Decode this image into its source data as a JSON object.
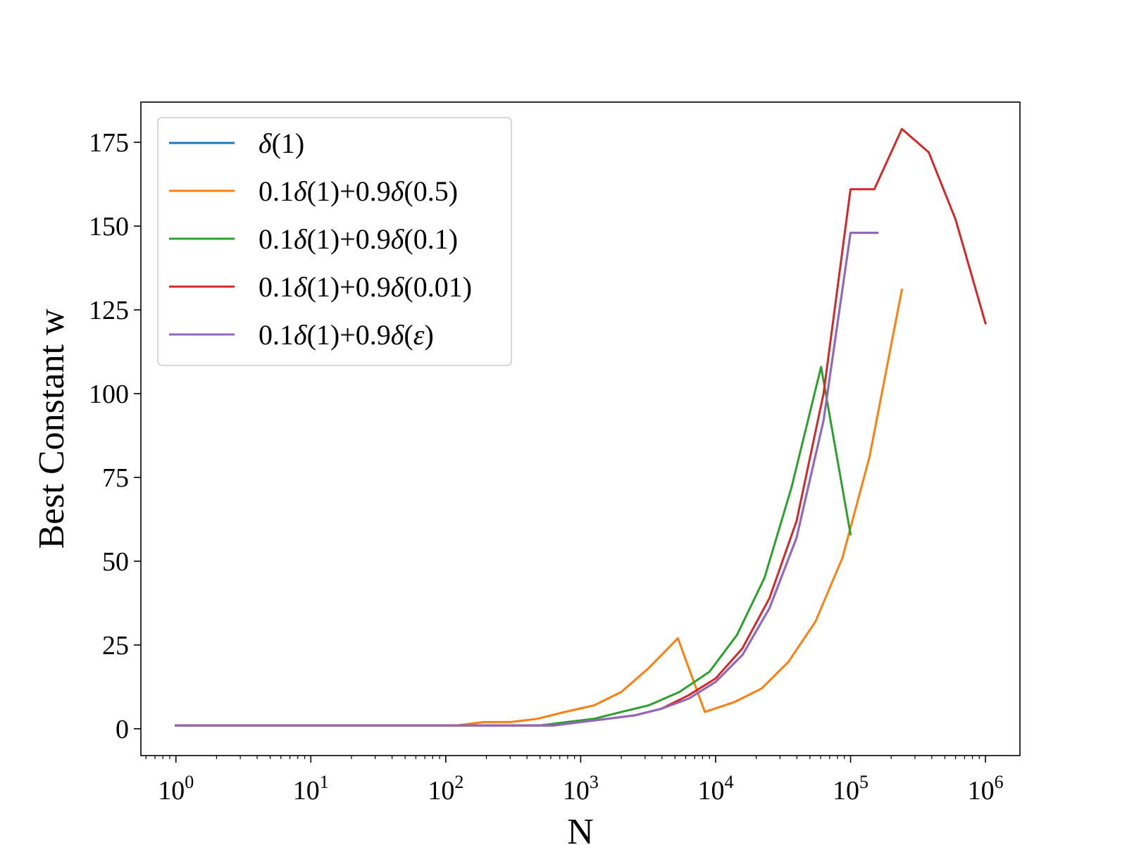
{
  "chart_data": {
    "type": "line",
    "xscale": "log",
    "xlabel": "N",
    "ylabel": "Best Constant w",
    "xlim": [
      0.55,
      1800000
    ],
    "ylim": [
      -8,
      187
    ],
    "xticks": [
      1,
      10,
      100,
      1000,
      10000,
      100000,
      1000000
    ],
    "xtick_labels": [
      {
        "base": "10",
        "exp": "0"
      },
      {
        "base": "10",
        "exp": "1"
      },
      {
        "base": "10",
        "exp": "2"
      },
      {
        "base": "10",
        "exp": "3"
      },
      {
        "base": "10",
        "exp": "4"
      },
      {
        "base": "10",
        "exp": "5"
      },
      {
        "base": "10",
        "exp": "6"
      }
    ],
    "yticks": [
      0,
      25,
      50,
      75,
      100,
      125,
      150,
      175
    ],
    "ytick_labels": [
      "0",
      "25",
      "50",
      "75",
      "100",
      "125",
      "150",
      "175"
    ],
    "grid": false,
    "legend_position": "top-left",
    "series": [
      {
        "name": "δ(1)",
        "legend": {
          "prefix": "",
          "delta1": "δ",
          "mid": "(1)",
          "delta2": "",
          "arg": "",
          "arg_italic": false,
          "suffix": ""
        },
        "color": "#1f77b4",
        "x": [
          1,
          1.58,
          2.51,
          3.98,
          6.31,
          10,
          15.8,
          25.1,
          39.8,
          63.1,
          100,
          158,
          251,
          398,
          631,
          1000,
          1580,
          2510,
          3980,
          6310,
          10000,
          15800,
          25100,
          39800,
          63100,
          100000,
          158000
        ],
        "y": [
          1,
          1,
          1,
          1,
          1,
          1,
          1,
          1,
          1,
          1,
          1,
          1,
          1,
          1,
          1,
          2,
          3,
          4,
          6,
          9,
          14,
          22,
          36,
          57,
          92,
          148,
          148
        ]
      },
      {
        "name": "0.1δ(1)+0.9δ(0.5)",
        "legend": {
          "prefix": "0.1",
          "delta1": "δ",
          "mid": "(1)+0.9",
          "delta2": "δ",
          "arg": "0.5",
          "arg_italic": false,
          "suffix": ")"
        },
        "color": "#ff7f0e",
        "x": [
          1,
          1.58,
          2.51,
          3.98,
          6.31,
          10,
          15.8,
          25.1,
          39.8,
          63.1,
          120,
          191,
          303,
          480,
          760,
          1260,
          2000,
          3170,
          5250,
          8320,
          13800,
          21900,
          34700,
          55000,
          87000,
          138000,
          240000
        ],
        "y": [
          1,
          1,
          1,
          1,
          1,
          1,
          1,
          1,
          1,
          1,
          1,
          2,
          2,
          3,
          5,
          7,
          11,
          18,
          27,
          5,
          8,
          12,
          20,
          32,
          51,
          81,
          131
        ]
      },
      {
        "name": "0.1δ(1)+0.9δ(0.1)",
        "legend": {
          "prefix": "0.1",
          "delta1": "δ",
          "mid": "(1)+0.9",
          "delta2": "δ",
          "arg": "0.1",
          "arg_italic": false,
          "suffix": ")"
        },
        "color": "#2ca02c",
        "x": [
          1,
          1.58,
          2.51,
          3.98,
          6.31,
          10,
          15.8,
          25.1,
          39.8,
          63.1,
          100,
          158,
          251,
          500,
          790,
          1260,
          2000,
          3200,
          5400,
          9000,
          14400,
          23000,
          36500,
          60500,
          100000
        ],
        "y": [
          1,
          1,
          1,
          1,
          1,
          1,
          1,
          1,
          1,
          1,
          1,
          1,
          1,
          1,
          2,
          3,
          5,
          7,
          11,
          17,
          28,
          45,
          72,
          108,
          58
        ]
      },
      {
        "name": "0.1δ(1)+0.9δ(0.01)",
        "legend": {
          "prefix": "0.1",
          "delta1": "δ",
          "mid": "(1)+0.9",
          "delta2": "δ",
          "arg": "0.01",
          "arg_italic": false,
          "suffix": ")"
        },
        "color": "#d62728",
        "x": [
          1,
          1.58,
          2.51,
          3.98,
          6.31,
          10,
          15.8,
          25.1,
          39.8,
          63.1,
          100,
          158,
          251,
          398,
          631,
          1000,
          1580,
          2510,
          3980,
          6310,
          10000,
          15800,
          25100,
          39800,
          63100,
          100000,
          150000,
          240000,
          380000,
          600000,
          1000000
        ],
        "y": [
          1,
          1,
          1,
          1,
          1,
          1,
          1,
          1,
          1,
          1,
          1,
          1,
          1,
          1,
          1,
          2,
          3,
          4,
          6,
          10,
          15,
          24,
          39,
          62,
          100,
          161,
          161,
          179,
          172,
          152,
          121
        ]
      },
      {
        "name": "0.1δ(1)+0.9δ(ε)",
        "legend": {
          "prefix": "0.1",
          "delta1": "δ",
          "mid": "(1)+0.9",
          "delta2": "δ",
          "arg": "ε",
          "arg_italic": true,
          "suffix": ")"
        },
        "color": "#9467bd",
        "x": [
          1,
          1.58,
          2.51,
          3.98,
          6.31,
          10,
          15.8,
          25.1,
          39.8,
          63.1,
          100,
          158,
          251,
          398,
          631,
          1000,
          1580,
          2510,
          3980,
          6310,
          10000,
          15800,
          25100,
          39800,
          63100,
          100000,
          158000
        ],
        "y": [
          1,
          1,
          1,
          1,
          1,
          1,
          1,
          1,
          1,
          1,
          1,
          1,
          1,
          1,
          1,
          2,
          3,
          4,
          6,
          9,
          14,
          22,
          36,
          57,
          92,
          148,
          148
        ]
      }
    ]
  }
}
